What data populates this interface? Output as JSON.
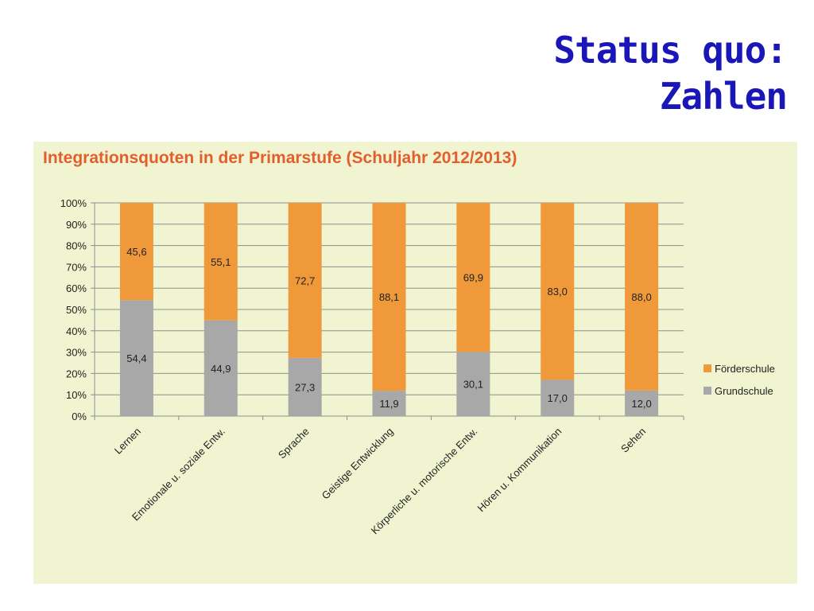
{
  "slide": {
    "title_line1": "Status quo:",
    "title_line2": "Zahlen"
  },
  "colors": {
    "title": "#1a16b8",
    "panel_bg": "#f0f4d0",
    "chart_title": "#e35e2e",
    "foerderschule": "#f0993b",
    "grundschule": "#a8a8a8"
  },
  "chart_data": {
    "type": "bar",
    "stacked": true,
    "title": "Integrationsquoten in der Primarstufe (Schuljahr 2012/2013)",
    "categories": [
      "Lernen",
      "Emotionale u. soziale Entw.",
      "Sprache",
      "Geistige Entwicklung",
      "Körperliche u. motorische Entw.",
      "Hören u. Kommunikation",
      "Sehen"
    ],
    "series": [
      {
        "name": "Grundschule",
        "values": [
          54.4,
          44.9,
          27.3,
          11.9,
          30.1,
          17.0,
          12.0
        ],
        "labels": [
          "54,4",
          "44,9",
          "27,3",
          "11,9",
          "30,1",
          "17,0",
          "12,0"
        ]
      },
      {
        "name": "Förderschule",
        "values": [
          45.6,
          55.1,
          72.7,
          88.1,
          69.9,
          83.0,
          88.0
        ],
        "labels": [
          "45,6",
          "55,1",
          "72,7",
          "88,1",
          "69,9",
          "83,0",
          "88,0"
        ]
      }
    ],
    "yticks": [
      "0%",
      "10%",
      "20%",
      "30%",
      "40%",
      "50%",
      "60%",
      "70%",
      "80%",
      "90%",
      "100%"
    ],
    "ylim": [
      0,
      100
    ],
    "grid": true,
    "legend": {
      "position": "right",
      "order": [
        "Förderschule",
        "Grundschule"
      ]
    }
  }
}
